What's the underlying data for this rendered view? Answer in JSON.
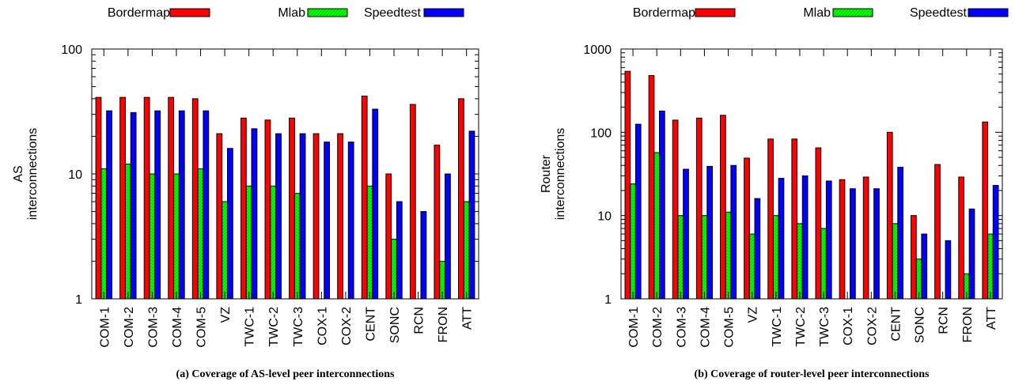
{
  "chart_data": [
    {
      "type": "bar",
      "caption": "(a) Coverage of AS-level peer interconnections",
      "ylabel_lines": [
        "AS",
        "interconnections"
      ],
      "yscale": "log",
      "ylim": [
        1,
        100
      ],
      "yticks": [
        "1",
        "10",
        "100"
      ],
      "legend_placement": "top",
      "categories": [
        "COM-1",
        "COM-2",
        "COM-3",
        "COM-4",
        "COM-5",
        "VZ",
        "TWC-1",
        "TWC-2",
        "TWC-3",
        "COX-1",
        "COX-2",
        "CENT",
        "SONC",
        "RCN",
        "FRON",
        "ATT"
      ],
      "series": [
        {
          "name": "Bordermap",
          "color": "#ff0000",
          "values": [
            41,
            41,
            41,
            41,
            40,
            21,
            28,
            27,
            28,
            21,
            21,
            42,
            10,
            36,
            17,
            40
          ]
        },
        {
          "name": "Mlab",
          "color": "#00ff00",
          "values": [
            11,
            12,
            10,
            10,
            11,
            6,
            8,
            8,
            7,
            null,
            null,
            8,
            3,
            null,
            2,
            6
          ]
        },
        {
          "name": "Speedtest",
          "color": "#0000ff",
          "values": [
            32,
            31,
            32,
            32,
            32,
            16,
            23,
            21,
            21,
            18,
            18,
            33,
            6,
            5,
            10,
            22
          ]
        }
      ]
    },
    {
      "type": "bar",
      "caption": "(b) Coverage of router-level peer interconnections",
      "ylabel_lines": [
        "Router",
        "interconnections"
      ],
      "yscale": "log",
      "ylim": [
        1,
        1000
      ],
      "yticks": [
        "1",
        "10",
        "100",
        "1000"
      ],
      "legend_placement": "top",
      "categories": [
        "COM-1",
        "COM-2",
        "COM-3",
        "COM-4",
        "COM-5",
        "VZ",
        "TWC-1",
        "TWC-2",
        "TWC-3",
        "COX-1",
        "COX-2",
        "CENT",
        "SONC",
        "RCN",
        "FRON",
        "ATT"
      ],
      "series": [
        {
          "name": "Bordermap",
          "color": "#ff0000",
          "values": [
            540,
            480,
            140,
            148,
            160,
            49,
            83,
            83,
            65,
            27,
            29,
            100,
            10,
            41,
            29,
            133
          ]
        },
        {
          "name": "Mlab",
          "color": "#00ff00",
          "values": [
            24,
            57,
            10,
            10,
            11,
            6,
            10,
            8,
            7,
            null,
            null,
            8,
            3,
            null,
            2,
            6
          ]
        },
        {
          "name": "Speedtest",
          "color": "#0000ff",
          "values": [
            125,
            180,
            36,
            39,
            40,
            16,
            28,
            30,
            26,
            21,
            21,
            38,
            6,
            5,
            12,
            23
          ]
        }
      ]
    }
  ]
}
